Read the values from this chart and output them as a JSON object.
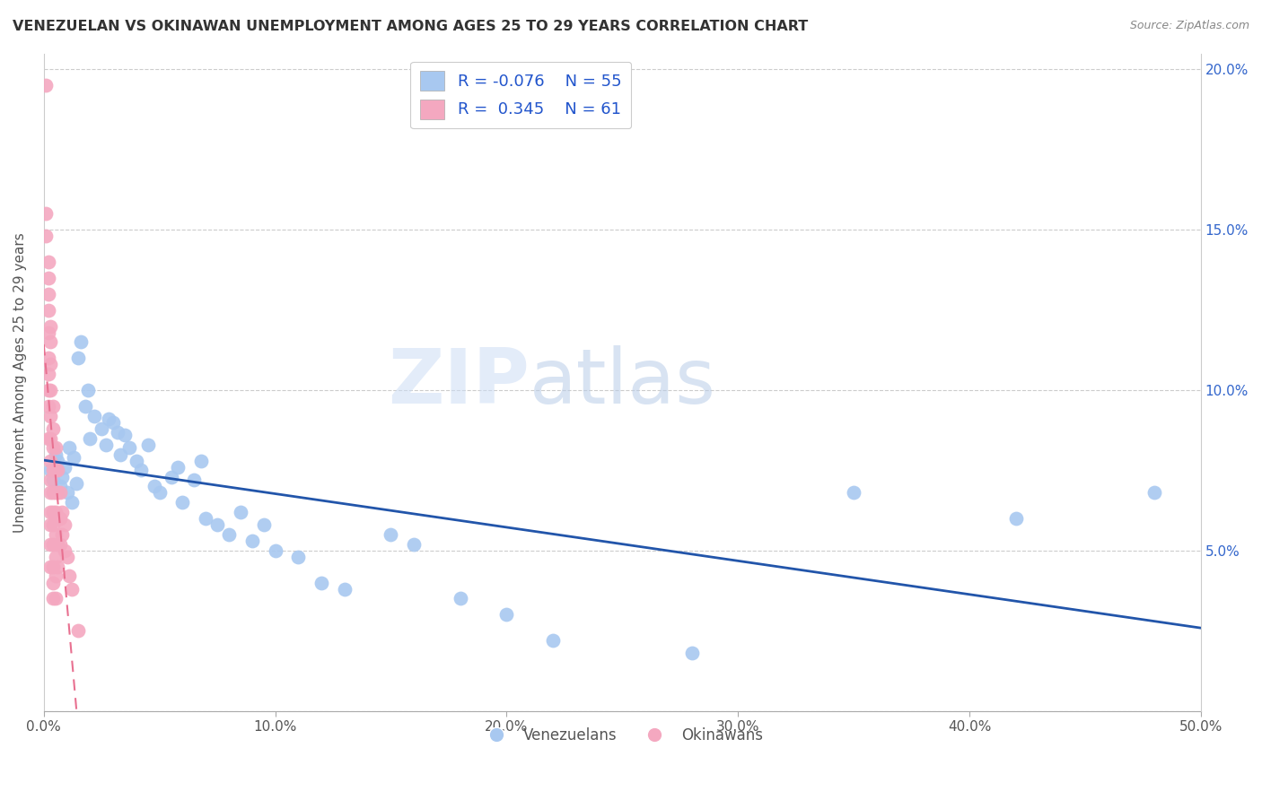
{
  "title": "VENEZUELAN VS OKINAWAN UNEMPLOYMENT AMONG AGES 25 TO 29 YEARS CORRELATION CHART",
  "source": "Source: ZipAtlas.com",
  "ylabel": "Unemployment Among Ages 25 to 29 years",
  "xlim": [
    0,
    0.5
  ],
  "ylim": [
    0,
    0.205
  ],
  "xticks": [
    0.0,
    0.1,
    0.2,
    0.3,
    0.4,
    0.5
  ],
  "xticklabels": [
    "0.0%",
    "10.0%",
    "20.0%",
    "30.0%",
    "40.0%",
    "50.0%"
  ],
  "yticks_right": [
    0.05,
    0.1,
    0.15,
    0.2
  ],
  "yticklabels_right": [
    "5.0%",
    "10.0%",
    "15.0%",
    "20.0%"
  ],
  "legend_r_blue": "R = -0.076",
  "legend_n_blue": "N = 55",
  "legend_r_pink": "R =  0.345",
  "legend_n_pink": "N = 61",
  "blue_scatter_color": "#a8c8f0",
  "pink_scatter_color": "#f4a8c0",
  "blue_line_color": "#2255aa",
  "pink_line_color": "#e87090",
  "watermark_zip": "ZIP",
  "watermark_atlas": "atlas",
  "venezuelan_x": [
    0.003,
    0.004,
    0.005,
    0.006,
    0.007,
    0.008,
    0.009,
    0.01,
    0.011,
    0.012,
    0.013,
    0.014,
    0.015,
    0.016,
    0.018,
    0.019,
    0.02,
    0.022,
    0.025,
    0.027,
    0.028,
    0.03,
    0.032,
    0.033,
    0.035,
    0.037,
    0.04,
    0.042,
    0.045,
    0.048,
    0.05,
    0.055,
    0.058,
    0.06,
    0.065,
    0.068,
    0.07,
    0.075,
    0.08,
    0.085,
    0.09,
    0.095,
    0.1,
    0.11,
    0.12,
    0.13,
    0.15,
    0.16,
    0.18,
    0.2,
    0.22,
    0.28,
    0.35,
    0.42,
    0.48
  ],
  "venezuelan_y": [
    0.075,
    0.072,
    0.08,
    0.078,
    0.07,
    0.073,
    0.076,
    0.068,
    0.082,
    0.065,
    0.079,
    0.071,
    0.11,
    0.115,
    0.095,
    0.1,
    0.085,
    0.092,
    0.088,
    0.083,
    0.091,
    0.09,
    0.087,
    0.08,
    0.086,
    0.082,
    0.078,
    0.075,
    0.083,
    0.07,
    0.068,
    0.073,
    0.076,
    0.065,
    0.072,
    0.078,
    0.06,
    0.058,
    0.055,
    0.062,
    0.053,
    0.058,
    0.05,
    0.048,
    0.04,
    0.038,
    0.055,
    0.052,
    0.035,
    0.03,
    0.022,
    0.018,
    0.068,
    0.06,
    0.068
  ],
  "okinawan_x": [
    0.001,
    0.001,
    0.001,
    0.002,
    0.002,
    0.002,
    0.002,
    0.002,
    0.002,
    0.002,
    0.002,
    0.002,
    0.002,
    0.003,
    0.003,
    0.003,
    0.003,
    0.003,
    0.003,
    0.003,
    0.003,
    0.003,
    0.003,
    0.003,
    0.003,
    0.003,
    0.004,
    0.004,
    0.004,
    0.004,
    0.004,
    0.004,
    0.004,
    0.004,
    0.004,
    0.004,
    0.004,
    0.005,
    0.005,
    0.005,
    0.005,
    0.005,
    0.005,
    0.005,
    0.005,
    0.006,
    0.006,
    0.006,
    0.006,
    0.006,
    0.007,
    0.007,
    0.007,
    0.008,
    0.008,
    0.009,
    0.009,
    0.01,
    0.011,
    0.012,
    0.015
  ],
  "okinawan_y": [
    0.195,
    0.155,
    0.148,
    0.14,
    0.135,
    0.13,
    0.125,
    0.118,
    0.11,
    0.105,
    0.1,
    0.095,
    0.085,
    0.12,
    0.115,
    0.108,
    0.1,
    0.092,
    0.085,
    0.078,
    0.072,
    0.068,
    0.062,
    0.058,
    0.052,
    0.045,
    0.095,
    0.088,
    0.082,
    0.075,
    0.068,
    0.062,
    0.058,
    0.052,
    0.045,
    0.04,
    0.035,
    0.082,
    0.075,
    0.068,
    0.062,
    0.055,
    0.048,
    0.042,
    0.035,
    0.075,
    0.068,
    0.06,
    0.052,
    0.045,
    0.068,
    0.06,
    0.052,
    0.062,
    0.055,
    0.058,
    0.05,
    0.048,
    0.042,
    0.038,
    0.025
  ]
}
